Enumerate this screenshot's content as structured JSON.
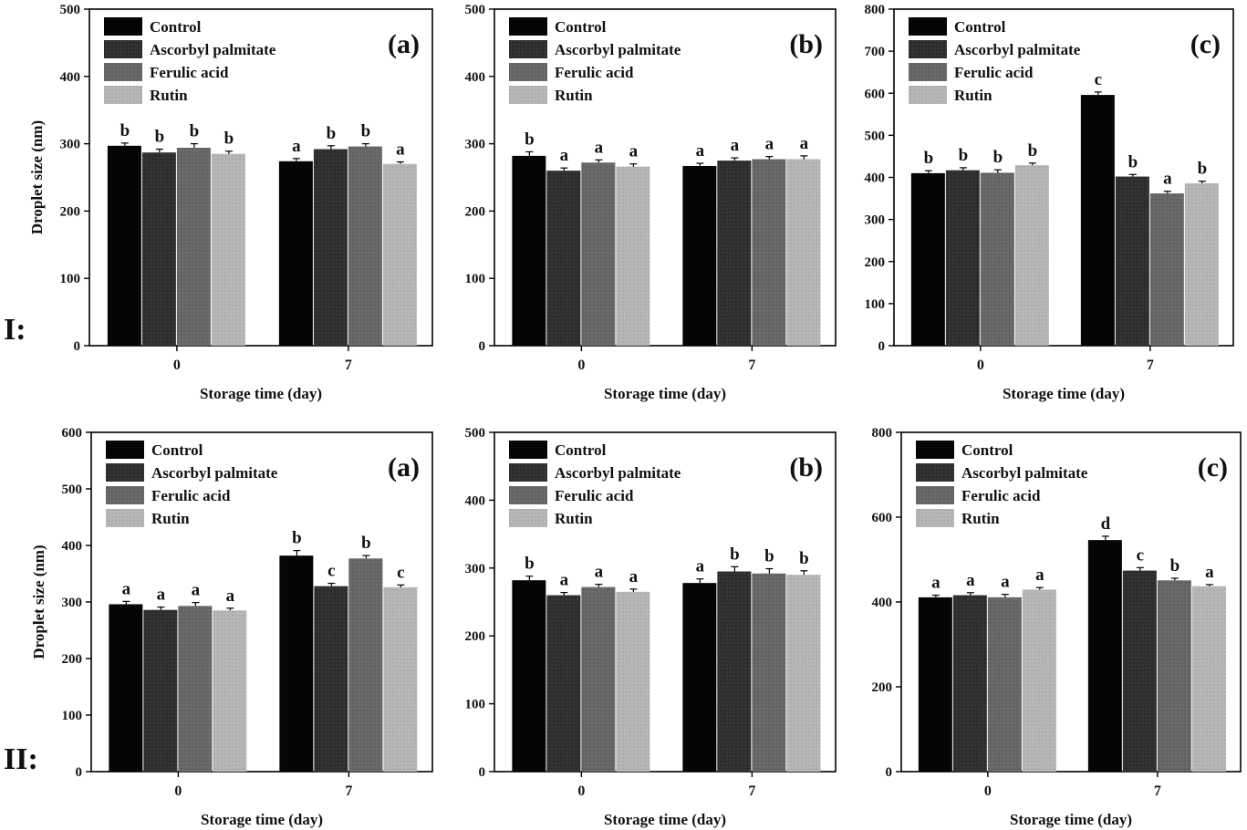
{
  "figure": {
    "row_labels": [
      "I:",
      "II:"
    ]
  },
  "chart_data": [
    {
      "type": "bar",
      "row": "I",
      "panel_label": "(a)",
      "categories": [
        "0",
        "7"
      ],
      "xlabel": "Storage time (day)",
      "ylabel": "Droplet size (nm)",
      "ylim": [
        0,
        500
      ],
      "yticks": [
        0,
        100,
        200,
        300,
        400,
        500
      ],
      "legend": "top-left",
      "series": [
        {
          "name": "Control",
          "values": [
            297,
            274
          ],
          "errors": [
            4,
            4
          ],
          "letters": [
            "b",
            "a"
          ]
        },
        {
          "name": "Ascorbyl palmitate",
          "values": [
            287,
            292
          ],
          "errors": [
            5,
            5
          ],
          "letters": [
            "b",
            "b"
          ]
        },
        {
          "name": "Ferulic acid",
          "values": [
            294,
            296
          ],
          "errors": [
            6,
            4
          ],
          "letters": [
            "b",
            "b"
          ]
        },
        {
          "name": "Rutin",
          "values": [
            285,
            270
          ],
          "errors": [
            4,
            3
          ],
          "letters": [
            "b",
            "a"
          ]
        }
      ]
    },
    {
      "type": "bar",
      "row": "I",
      "panel_label": "(b)",
      "categories": [
        "0",
        "7"
      ],
      "xlabel": "Storage time (day)",
      "ylabel": "",
      "ylim": [
        0,
        500
      ],
      "yticks": [
        0,
        100,
        200,
        300,
        400,
        500
      ],
      "legend": "top-left",
      "series": [
        {
          "name": "Control",
          "values": [
            282,
            267
          ],
          "errors": [
            6,
            4
          ],
          "letters": [
            "b",
            "a"
          ]
        },
        {
          "name": "Ascorbyl palmitate",
          "values": [
            260,
            275
          ],
          "errors": [
            4,
            4
          ],
          "letters": [
            "a",
            "a"
          ]
        },
        {
          "name": "Ferulic acid",
          "values": [
            272,
            277
          ],
          "errors": [
            4,
            4
          ],
          "letters": [
            "a",
            "a"
          ]
        },
        {
          "name": "Rutin",
          "values": [
            266,
            277
          ],
          "errors": [
            4,
            5
          ],
          "letters": [
            "a",
            "a"
          ]
        }
      ]
    },
    {
      "type": "bar",
      "row": "I",
      "panel_label": "(c)",
      "categories": [
        "0",
        "7"
      ],
      "xlabel": "Storage time (day)",
      "ylabel": "",
      "ylim": [
        0,
        800
      ],
      "yticks": [
        0,
        100,
        200,
        300,
        400,
        500,
        600,
        700,
        800
      ],
      "legend": "top-left",
      "series": [
        {
          "name": "Control",
          "values": [
            410,
            596
          ],
          "errors": [
            6,
            7
          ],
          "letters": [
            "b",
            "c"
          ]
        },
        {
          "name": "Ascorbyl palmitate",
          "values": [
            417,
            402
          ],
          "errors": [
            6,
            5
          ],
          "letters": [
            "b",
            "b"
          ]
        },
        {
          "name": "Ferulic acid",
          "values": [
            411,
            362
          ],
          "errors": [
            7,
            5
          ],
          "letters": [
            "b",
            "a"
          ]
        },
        {
          "name": "Rutin",
          "values": [
            429,
            386
          ],
          "errors": [
            5,
            5
          ],
          "letters": [
            "b",
            "b"
          ]
        }
      ]
    },
    {
      "type": "bar",
      "row": "II",
      "panel_label": "(a)",
      "categories": [
        "0",
        "7"
      ],
      "xlabel": "Storage time (day)",
      "ylabel": "Droplet size (nm)",
      "ylim": [
        0,
        600
      ],
      "yticks": [
        0,
        100,
        200,
        300,
        400,
        500,
        600
      ],
      "legend": "top-left",
      "series": [
        {
          "name": "Control",
          "values": [
            296,
            382
          ],
          "errors": [
            5,
            9
          ],
          "letters": [
            "a",
            "b"
          ]
        },
        {
          "name": "Ascorbyl palmitate",
          "values": [
            286,
            328
          ],
          "errors": [
            5,
            5
          ],
          "letters": [
            "a",
            "c"
          ]
        },
        {
          "name": "Ferulic acid",
          "values": [
            293,
            377
          ],
          "errors": [
            6,
            5
          ],
          "letters": [
            "a",
            "b"
          ]
        },
        {
          "name": "Rutin",
          "values": [
            285,
            326
          ],
          "errors": [
            4,
            4
          ],
          "letters": [
            "a",
            "c"
          ]
        }
      ]
    },
    {
      "type": "bar",
      "row": "II",
      "panel_label": "(b)",
      "categories": [
        "0",
        "7"
      ],
      "xlabel": "Storage time (day)",
      "ylabel": "",
      "ylim": [
        0,
        500
      ],
      "yticks": [
        0,
        100,
        200,
        300,
        400,
        500
      ],
      "legend": "top-left",
      "series": [
        {
          "name": "Control",
          "values": [
            282,
            278
          ],
          "errors": [
            6,
            6
          ],
          "letters": [
            "b",
            "a"
          ]
        },
        {
          "name": "Ascorbyl palmitate",
          "values": [
            260,
            295
          ],
          "errors": [
            4,
            7
          ],
          "letters": [
            "a",
            "b"
          ]
        },
        {
          "name": "Ferulic acid",
          "values": [
            272,
            292
          ],
          "errors": [
            4,
            7
          ],
          "letters": [
            "a",
            "b"
          ]
        },
        {
          "name": "Rutin",
          "values": [
            265,
            290
          ],
          "errors": [
            4,
            6
          ],
          "letters": [
            "a",
            "b"
          ]
        }
      ]
    },
    {
      "type": "bar",
      "row": "II",
      "panel_label": "(c)",
      "categories": [
        "0",
        "7"
      ],
      "xlabel": "Storage time (day)",
      "ylabel": "",
      "ylim": [
        0,
        800
      ],
      "yticks": [
        0,
        200,
        400,
        600,
        800
      ],
      "legend": "top-left",
      "series": [
        {
          "name": "Control",
          "values": [
            411,
            546
          ],
          "errors": [
            5,
            9
          ],
          "letters": [
            "a",
            "d"
          ]
        },
        {
          "name": "Ascorbyl palmitate",
          "values": [
            416,
            474
          ],
          "errors": [
            6,
            7
          ],
          "letters": [
            "a",
            "c"
          ]
        },
        {
          "name": "Ferulic acid",
          "values": [
            411,
            451
          ],
          "errors": [
            7,
            5
          ],
          "letters": [
            "a",
            "b"
          ]
        },
        {
          "name": "Rutin",
          "values": [
            429,
            437
          ],
          "errors": [
            5,
            4
          ],
          "letters": [
            "a",
            "a"
          ]
        }
      ]
    }
  ],
  "colors": {
    "Control": "#050505",
    "Ascorbyl palmitate": "#2b2b2b",
    "Ferulic acid": "#666666",
    "Rutin": "#b9b9b9"
  }
}
